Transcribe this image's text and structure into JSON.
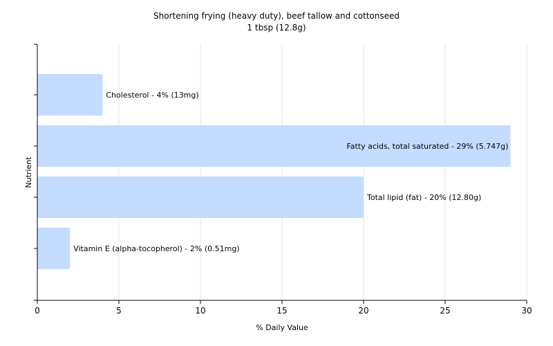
{
  "chart_data": {
    "type": "bar",
    "orientation": "horizontal",
    "title": "Shortening frying (heavy duty), beef tallow and cottonseed",
    "subtitle": "1 tbsp (12.8g)",
    "xlabel": "% Daily Value",
    "ylabel": "Nutrient",
    "xlim": [
      0,
      30
    ],
    "xticks": [
      0,
      5,
      10,
      15,
      20,
      25,
      30
    ],
    "grid": true,
    "bar_color": "#c4dcff",
    "grid_color": "#e6e6e6",
    "bars": [
      {
        "value": 4,
        "label": "Cholesterol - 4% (13mg)"
      },
      {
        "value": 29,
        "label": "Fatty acids, total saturated - 29% (5.747g)"
      },
      {
        "value": 20,
        "label": "Total lipid (fat) - 20% (12.80g)"
      },
      {
        "value": 2,
        "label": "Vitamin E (alpha-tocopherol) - 2% (0.51mg)"
      }
    ]
  }
}
